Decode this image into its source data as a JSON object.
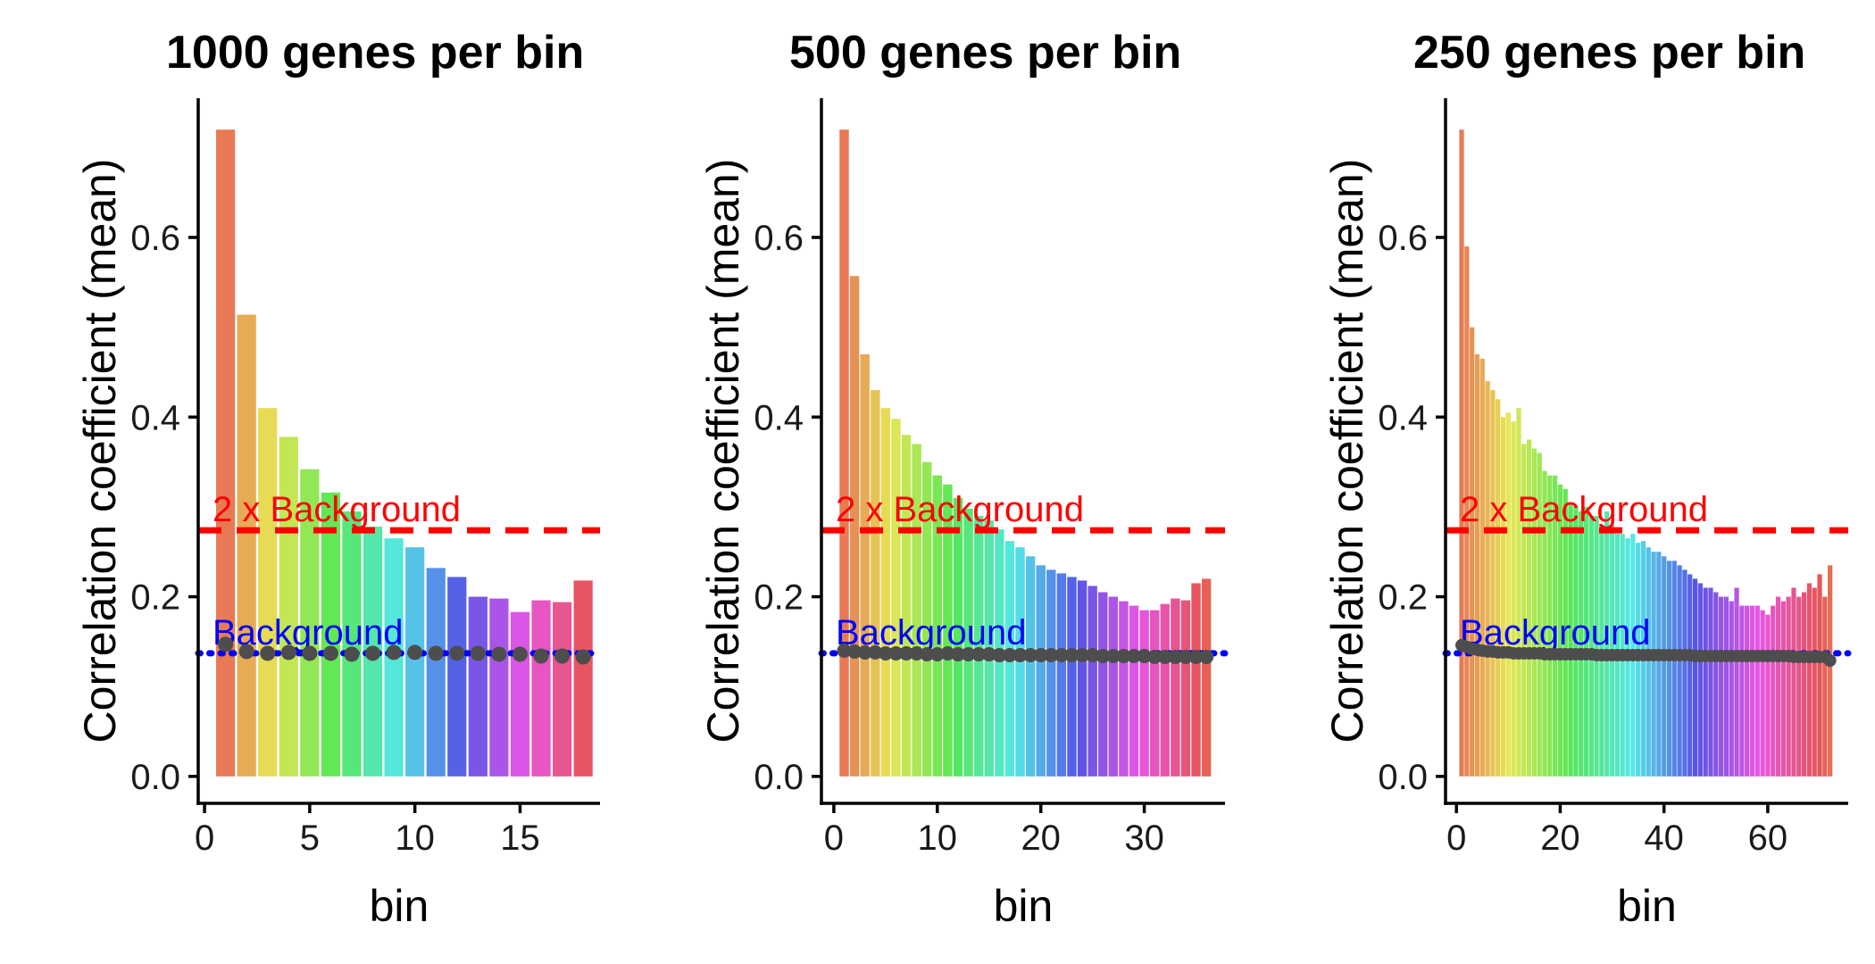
{
  "figure": {
    "reference_lines": {
      "background": {
        "label": "Background",
        "color": "#0000ff",
        "style": "dotted"
      },
      "double_background": {
        "label": "2 x Background",
        "color": "#ff0000",
        "style": "dashed"
      }
    },
    "point_color": "#4d4d4d",
    "hue_start": 15
  },
  "chart_data": [
    {
      "type": "bar",
      "title": "1000 genes per bin",
      "xlabel": "bin",
      "ylabel": "Correlation coefficient (mean)",
      "xlim": [
        -0.3,
        18.8
      ],
      "ylim": [
        -0.03,
        0.755
      ],
      "xticks": [
        0,
        5,
        10,
        15
      ],
      "yticks": [
        "0.0",
        "0.2",
        "0.4",
        "0.6"
      ],
      "background": 0.137,
      "double_background": 0.274,
      "bins": [
        1,
        2,
        3,
        4,
        5,
        6,
        7,
        8,
        9,
        10,
        11,
        12,
        13,
        14,
        15,
        16,
        17,
        18
      ],
      "values": [
        0.72,
        0.514,
        0.41,
        0.378,
        0.342,
        0.316,
        0.295,
        0.278,
        0.265,
        0.255,
        0.232,
        0.222,
        0.2,
        0.198,
        0.183,
        0.196,
        0.194,
        0.218
      ],
      "points": [
        0.147,
        0.139,
        0.137,
        0.138,
        0.137,
        0.137,
        0.136,
        0.137,
        0.138,
        0.138,
        0.137,
        0.137,
        0.137,
        0.136,
        0.136,
        0.134,
        0.134,
        0.133
      ]
    },
    {
      "type": "bar",
      "title": "500 genes per bin",
      "xlabel": "bin",
      "ylabel": "Correlation coefficient (mean)",
      "xlim": [
        -1.2,
        37.8
      ],
      "ylim": [
        -0.03,
        0.755
      ],
      "xticks": [
        0,
        10,
        20,
        30
      ],
      "yticks": [
        "0.0",
        "0.2",
        "0.4",
        "0.6"
      ],
      "background": 0.137,
      "double_background": 0.274,
      "bins": [
        1,
        2,
        3,
        4,
        5,
        6,
        7,
        8,
        9,
        10,
        11,
        12,
        13,
        14,
        15,
        16,
        17,
        18,
        19,
        20,
        21,
        22,
        23,
        24,
        25,
        26,
        27,
        28,
        29,
        30,
        31,
        32,
        33,
        34,
        35,
        36
      ],
      "values": [
        0.72,
        0.557,
        0.47,
        0.43,
        0.41,
        0.398,
        0.38,
        0.37,
        0.35,
        0.335,
        0.325,
        0.31,
        0.298,
        0.29,
        0.285,
        0.275,
        0.262,
        0.255,
        0.245,
        0.235,
        0.23,
        0.226,
        0.222,
        0.218,
        0.212,
        0.205,
        0.2,
        0.195,
        0.19,
        0.185,
        0.185,
        0.192,
        0.198,
        0.196,
        0.215,
        0.22
      ],
      "points": [
        0.14,
        0.139,
        0.138,
        0.138,
        0.137,
        0.137,
        0.137,
        0.137,
        0.136,
        0.136,
        0.137,
        0.136,
        0.136,
        0.136,
        0.136,
        0.135,
        0.135,
        0.135,
        0.135,
        0.135,
        0.135,
        0.135,
        0.135,
        0.135,
        0.135,
        0.134,
        0.134,
        0.134,
        0.134,
        0.134,
        0.133,
        0.133,
        0.133,
        0.133,
        0.133,
        0.133
      ]
    },
    {
      "type": "bar",
      "title": "250 genes per bin",
      "xlabel": "bin",
      "ylabel": "Correlation coefficient (mean)",
      "xlim": [
        -2.1,
        75.5
      ],
      "ylim": [
        -0.03,
        0.755
      ],
      "xticks": [
        0,
        20,
        40,
        60
      ],
      "yticks": [
        "0.0",
        "0.2",
        "0.4",
        "0.6"
      ],
      "background": 0.137,
      "double_background": 0.274,
      "bins": [
        1,
        2,
        3,
        4,
        5,
        6,
        7,
        8,
        9,
        10,
        11,
        12,
        13,
        14,
        15,
        16,
        17,
        18,
        19,
        20,
        21,
        22,
        23,
        24,
        25,
        26,
        27,
        28,
        29,
        30,
        31,
        32,
        33,
        34,
        35,
        36,
        37,
        38,
        39,
        40,
        41,
        42,
        43,
        44,
        45,
        46,
        47,
        48,
        49,
        50,
        51,
        52,
        53,
        54,
        55,
        56,
        57,
        58,
        59,
        60,
        61,
        62,
        63,
        64,
        65,
        66,
        67,
        68,
        69,
        70,
        71,
        72
      ],
      "values": [
        0.72,
        0.59,
        0.5,
        0.47,
        0.465,
        0.44,
        0.43,
        0.42,
        0.4,
        0.405,
        0.395,
        0.41,
        0.37,
        0.375,
        0.365,
        0.36,
        0.34,
        0.335,
        0.335,
        0.325,
        0.32,
        0.305,
        0.3,
        0.295,
        0.3,
        0.29,
        0.29,
        0.28,
        0.295,
        0.28,
        0.27,
        0.27,
        0.265,
        0.27,
        0.26,
        0.262,
        0.255,
        0.25,
        0.25,
        0.245,
        0.24,
        0.24,
        0.235,
        0.23,
        0.225,
        0.22,
        0.215,
        0.21,
        0.21,
        0.205,
        0.2,
        0.2,
        0.195,
        0.21,
        0.19,
        0.19,
        0.19,
        0.19,
        0.185,
        0.18,
        0.19,
        0.2,
        0.195,
        0.2,
        0.21,
        0.2,
        0.205,
        0.215,
        0.21,
        0.225,
        0.2,
        0.235
      ],
      "points": [
        0.146,
        0.144,
        0.142,
        0.141,
        0.14,
        0.139,
        0.139,
        0.138,
        0.138,
        0.138,
        0.137,
        0.137,
        0.137,
        0.137,
        0.137,
        0.137,
        0.136,
        0.136,
        0.136,
        0.136,
        0.136,
        0.136,
        0.136,
        0.136,
        0.136,
        0.136,
        0.135,
        0.135,
        0.135,
        0.135,
        0.135,
        0.135,
        0.135,
        0.135,
        0.135,
        0.135,
        0.135,
        0.135,
        0.135,
        0.135,
        0.135,
        0.135,
        0.135,
        0.135,
        0.135,
        0.134,
        0.134,
        0.134,
        0.134,
        0.134,
        0.134,
        0.134,
        0.134,
        0.134,
        0.134,
        0.134,
        0.134,
        0.134,
        0.134,
        0.134,
        0.134,
        0.134,
        0.134,
        0.134,
        0.133,
        0.133,
        0.133,
        0.133,
        0.133,
        0.133,
        0.133,
        0.129
      ]
    }
  ]
}
